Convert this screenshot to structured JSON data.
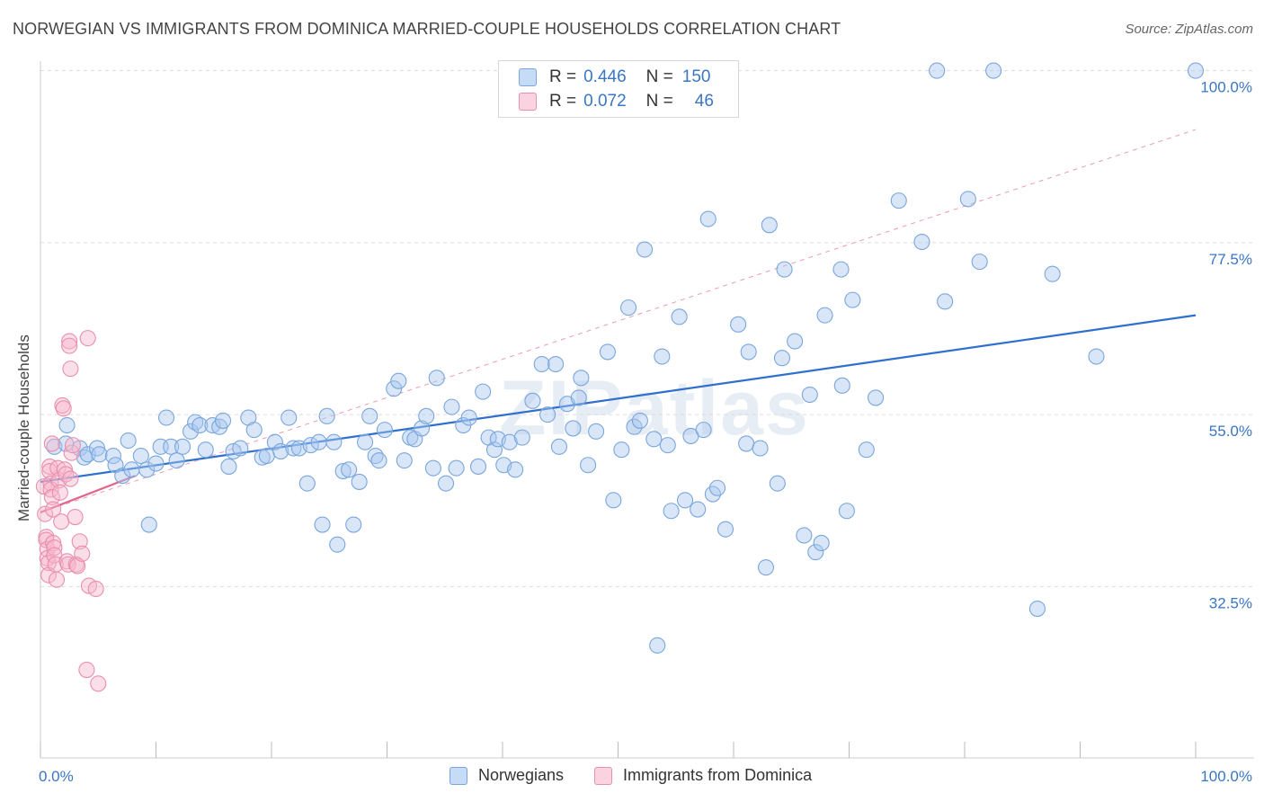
{
  "title": "NORWEGIAN VS IMMIGRANTS FROM DOMINICA MARRIED-COUPLE HOUSEHOLDS CORRELATION CHART",
  "source": "Source: ZipAtlas.com",
  "watermark": "ZIPatlas",
  "legend": {
    "rows": [
      {
        "r_label": "R =",
        "r_value": "0.446",
        "n_label": "N =",
        "n_value": "150",
        "color": "#a9c8f0"
      },
      {
        "r_label": "R =",
        "r_value": "0.072",
        "n_label": "N =",
        "n_value": "46",
        "color": "#f7b8cc"
      }
    ]
  },
  "bottom_legend": [
    {
      "label": "Norwegians",
      "color": "#a9c8f0"
    },
    {
      "label": "Immigrants from Dominica",
      "color": "#f7b8cc"
    }
  ],
  "chart_data": {
    "type": "scatter",
    "title": "NORWEGIAN VS IMMIGRANTS FROM DOMINICA MARRIED-COUPLE HOUSEHOLDS CORRELATION CHART",
    "xlabel": "",
    "ylabel": "Married-couple Households",
    "xlim": [
      0,
      100
    ],
    "ylim": [
      13,
      102
    ],
    "x_tick_labels": [
      "0.0%",
      "100.0%"
    ],
    "y_ticks": [
      100,
      77.5,
      55,
      32.5
    ],
    "y_tick_labels": [
      "100.0%",
      "77.5%",
      "55.0%",
      "32.5%"
    ],
    "grid": true,
    "legend_position": "top-center",
    "series": [
      {
        "name": "Norwegians",
        "color": "#a9c8f0",
        "stroke": "#7aa6dc",
        "trend": {
          "x": [
            0,
            100
          ],
          "y": [
            46.2,
            68.0
          ],
          "color": "#2f6fce"
        },
        "points": [
          [
            1.2,
            50.8
          ],
          [
            2.2,
            51.2
          ],
          [
            2.3,
            53.6
          ],
          [
            3.4,
            50.6
          ],
          [
            3.8,
            49.4
          ],
          [
            4.1,
            49.8
          ],
          [
            4.9,
            50.6
          ],
          [
            5.1,
            49.8
          ],
          [
            6.3,
            49.6
          ],
          [
            6.5,
            48.4
          ],
          [
            7.1,
            47.0
          ],
          [
            7.6,
            51.6
          ],
          [
            7.9,
            47.8
          ],
          [
            8.7,
            49.6
          ],
          [
            9.2,
            47.8
          ],
          [
            9.4,
            40.6
          ],
          [
            10.0,
            48.6
          ],
          [
            10.4,
            50.8
          ],
          [
            10.9,
            54.6
          ],
          [
            11.3,
            50.8
          ],
          [
            11.8,
            49.0
          ],
          [
            12.3,
            50.8
          ],
          [
            13.0,
            52.8
          ],
          [
            13.4,
            54.0
          ],
          [
            13.8,
            53.6
          ],
          [
            14.3,
            50.4
          ],
          [
            14.9,
            53.6
          ],
          [
            15.5,
            53.4
          ],
          [
            15.8,
            54.2
          ],
          [
            16.3,
            48.2
          ],
          [
            16.7,
            50.2
          ],
          [
            17.3,
            50.6
          ],
          [
            18.0,
            54.6
          ],
          [
            18.5,
            53.0
          ],
          [
            19.2,
            49.4
          ],
          [
            19.6,
            49.6
          ],
          [
            20.3,
            51.4
          ],
          [
            20.8,
            50.2
          ],
          [
            21.5,
            54.6
          ],
          [
            21.9,
            50.6
          ],
          [
            22.4,
            50.6
          ],
          [
            23.1,
            46.0
          ],
          [
            23.4,
            51.0
          ],
          [
            24.1,
            51.4
          ],
          [
            24.4,
            40.6
          ],
          [
            24.8,
            54.8
          ],
          [
            25.4,
            51.4
          ],
          [
            25.7,
            38.0
          ],
          [
            26.2,
            47.6
          ],
          [
            26.7,
            47.8
          ],
          [
            27.1,
            40.6
          ],
          [
            27.6,
            46.2
          ],
          [
            28.1,
            51.4
          ],
          [
            28.5,
            54.8
          ],
          [
            29.0,
            49.6
          ],
          [
            29.3,
            49.0
          ],
          [
            29.8,
            53.0
          ],
          [
            30.6,
            58.4
          ],
          [
            31.0,
            59.4
          ],
          [
            31.5,
            49.0
          ],
          [
            32.0,
            52.0
          ],
          [
            32.4,
            51.8
          ],
          [
            33.0,
            53.2
          ],
          [
            33.4,
            54.8
          ],
          [
            34.0,
            48.0
          ],
          [
            34.3,
            59.8
          ],
          [
            35.1,
            46.0
          ],
          [
            35.6,
            56.0
          ],
          [
            36.0,
            48.0
          ],
          [
            36.6,
            53.6
          ],
          [
            37.1,
            54.6
          ],
          [
            37.9,
            48.2
          ],
          [
            38.3,
            58.0
          ],
          [
            38.8,
            52.0
          ],
          [
            39.3,
            50.4
          ],
          [
            39.6,
            51.8
          ],
          [
            40.1,
            48.4
          ],
          [
            40.6,
            51.4
          ],
          [
            41.1,
            47.8
          ],
          [
            41.7,
            52.0
          ],
          [
            42.6,
            56.8
          ],
          [
            43.4,
            61.6
          ],
          [
            43.9,
            55.0
          ],
          [
            44.6,
            61.6
          ],
          [
            44.9,
            50.8
          ],
          [
            45.6,
            56.4
          ],
          [
            46.1,
            53.2
          ],
          [
            46.6,
            57.2
          ],
          [
            46.8,
            59.8
          ],
          [
            47.4,
            48.4
          ],
          [
            48.1,
            52.8
          ],
          [
            49.1,
            63.2
          ],
          [
            49.6,
            43.8
          ],
          [
            50.3,
            50.4
          ],
          [
            50.9,
            69.0
          ],
          [
            51.4,
            53.4
          ],
          [
            51.9,
            54.2
          ],
          [
            52.3,
            76.6
          ],
          [
            53.1,
            51.8
          ],
          [
            53.4,
            24.8
          ],
          [
            53.8,
            62.6
          ],
          [
            54.3,
            51.0
          ],
          [
            54.6,
            42.4
          ],
          [
            55.3,
            67.8
          ],
          [
            55.8,
            43.8
          ],
          [
            56.3,
            52.2
          ],
          [
            56.9,
            42.6
          ],
          [
            57.4,
            53.0
          ],
          [
            57.8,
            80.6
          ],
          [
            58.2,
            44.6
          ],
          [
            58.6,
            45.4
          ],
          [
            59.3,
            40.0
          ],
          [
            60.4,
            66.8
          ],
          [
            61.1,
            51.2
          ],
          [
            61.3,
            63.2
          ],
          [
            62.3,
            50.6
          ],
          [
            62.8,
            35.0
          ],
          [
            63.1,
            79.8
          ],
          [
            63.8,
            46.0
          ],
          [
            64.2,
            62.4
          ],
          [
            64.4,
            74.0
          ],
          [
            65.3,
            64.6
          ],
          [
            66.1,
            39.2
          ],
          [
            66.6,
            57.6
          ],
          [
            67.1,
            37.0
          ],
          [
            67.6,
            38.2
          ],
          [
            67.9,
            68.0
          ],
          [
            69.3,
            74.0
          ],
          [
            69.4,
            58.8
          ],
          [
            69.8,
            42.4
          ],
          [
            70.3,
            70.0
          ],
          [
            71.5,
            50.4
          ],
          [
            72.3,
            57.2
          ],
          [
            74.3,
            83.0
          ],
          [
            76.3,
            77.6
          ],
          [
            77.6,
            100.0
          ],
          [
            78.3,
            69.8
          ],
          [
            80.3,
            83.2
          ],
          [
            81.3,
            75.0
          ],
          [
            82.5,
            100.0
          ],
          [
            86.3,
            29.6
          ],
          [
            87.6,
            73.4
          ],
          [
            91.4,
            62.6
          ],
          [
            100.0,
            100.0
          ]
        ]
      },
      {
        "name": "Immigrants from Dominica",
        "color": "#f7b8cc",
        "stroke": "#ea8eae",
        "trend": {
          "x": [
            0,
            8.2
          ],
          "y": [
            42.2,
            47.0
          ],
          "color": "#e0668c"
        },
        "trend_dashed": {
          "x": [
            0,
            100
          ],
          "y": [
            42.2,
            92.3
          ],
          "color": "#ee9ab2"
        },
        "points": [
          [
            0.3,
            45.6
          ],
          [
            0.4,
            42.0
          ],
          [
            0.5,
            39.0
          ],
          [
            0.5,
            38.6
          ],
          [
            0.6,
            37.4
          ],
          [
            0.6,
            36.2
          ],
          [
            0.7,
            35.6
          ],
          [
            0.7,
            34.0
          ],
          [
            0.8,
            48.2
          ],
          [
            0.8,
            47.6
          ],
          [
            0.9,
            46.0
          ],
          [
            0.9,
            45.2
          ],
          [
            1.0,
            51.2
          ],
          [
            1.0,
            44.2
          ],
          [
            1.1,
            42.6
          ],
          [
            1.1,
            38.2
          ],
          [
            1.2,
            37.6
          ],
          [
            1.2,
            36.6
          ],
          [
            1.3,
            35.4
          ],
          [
            1.4,
            33.4
          ],
          [
            1.5,
            48.0
          ],
          [
            1.6,
            46.4
          ],
          [
            1.7,
            44.8
          ],
          [
            1.8,
            41.0
          ],
          [
            1.9,
            56.2
          ],
          [
            2.0,
            55.8
          ],
          [
            2.1,
            47.8
          ],
          [
            2.2,
            47.2
          ],
          [
            2.3,
            35.8
          ],
          [
            2.4,
            35.4
          ],
          [
            2.5,
            64.6
          ],
          [
            2.5,
            64.0
          ],
          [
            2.6,
            61.0
          ],
          [
            2.6,
            46.6
          ],
          [
            2.7,
            50.0
          ],
          [
            2.8,
            51.0
          ],
          [
            3.0,
            41.6
          ],
          [
            3.1,
            35.4
          ],
          [
            3.2,
            35.2
          ],
          [
            3.4,
            38.4
          ],
          [
            3.6,
            36.8
          ],
          [
            4.2,
            32.6
          ],
          [
            4.8,
            32.2
          ],
          [
            4.1,
            65.0
          ],
          [
            4.0,
            21.6
          ],
          [
            5.0,
            19.8
          ]
        ]
      }
    ]
  }
}
